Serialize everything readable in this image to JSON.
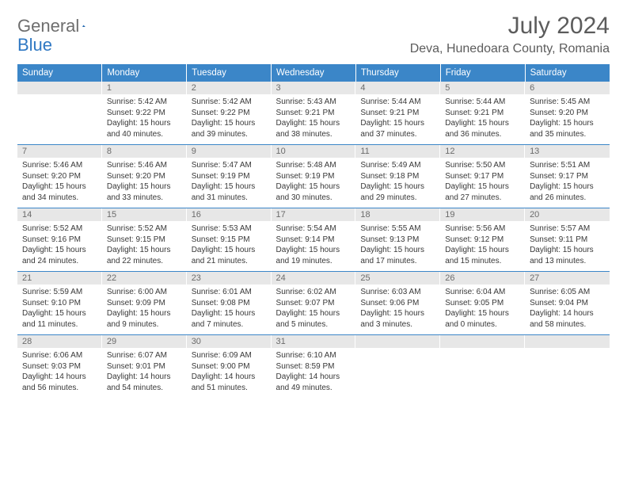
{
  "brand": {
    "word1": "General",
    "word2": "Blue"
  },
  "header": {
    "month_title": "July 2024",
    "location": "Deva, Hunedoara County, Romania"
  },
  "style": {
    "header_bg": "#3b86c8",
    "header_text": "#ffffff",
    "daynum_bg": "#e7e7e7",
    "daynum_text": "#6b6b6b",
    "body_text": "#383838",
    "rule_color": "#3b86c8",
    "page_bg": "#ffffff",
    "title_color": "#5c5c5c",
    "brand_gray": "#6e6e6e",
    "brand_blue": "#2f78c3",
    "columns": 7
  },
  "weekdays": [
    "Sunday",
    "Monday",
    "Tuesday",
    "Wednesday",
    "Thursday",
    "Friday",
    "Saturday"
  ],
  "weeks": [
    [
      {
        "num": "",
        "sunrise": "",
        "sunset": "",
        "daylight": ""
      },
      {
        "num": "1",
        "sunrise": "Sunrise: 5:42 AM",
        "sunset": "Sunset: 9:22 PM",
        "daylight": "Daylight: 15 hours and 40 minutes."
      },
      {
        "num": "2",
        "sunrise": "Sunrise: 5:42 AM",
        "sunset": "Sunset: 9:22 PM",
        "daylight": "Daylight: 15 hours and 39 minutes."
      },
      {
        "num": "3",
        "sunrise": "Sunrise: 5:43 AM",
        "sunset": "Sunset: 9:21 PM",
        "daylight": "Daylight: 15 hours and 38 minutes."
      },
      {
        "num": "4",
        "sunrise": "Sunrise: 5:44 AM",
        "sunset": "Sunset: 9:21 PM",
        "daylight": "Daylight: 15 hours and 37 minutes."
      },
      {
        "num": "5",
        "sunrise": "Sunrise: 5:44 AM",
        "sunset": "Sunset: 9:21 PM",
        "daylight": "Daylight: 15 hours and 36 minutes."
      },
      {
        "num": "6",
        "sunrise": "Sunrise: 5:45 AM",
        "sunset": "Sunset: 9:20 PM",
        "daylight": "Daylight: 15 hours and 35 minutes."
      }
    ],
    [
      {
        "num": "7",
        "sunrise": "Sunrise: 5:46 AM",
        "sunset": "Sunset: 9:20 PM",
        "daylight": "Daylight: 15 hours and 34 minutes."
      },
      {
        "num": "8",
        "sunrise": "Sunrise: 5:46 AM",
        "sunset": "Sunset: 9:20 PM",
        "daylight": "Daylight: 15 hours and 33 minutes."
      },
      {
        "num": "9",
        "sunrise": "Sunrise: 5:47 AM",
        "sunset": "Sunset: 9:19 PM",
        "daylight": "Daylight: 15 hours and 31 minutes."
      },
      {
        "num": "10",
        "sunrise": "Sunrise: 5:48 AM",
        "sunset": "Sunset: 9:19 PM",
        "daylight": "Daylight: 15 hours and 30 minutes."
      },
      {
        "num": "11",
        "sunrise": "Sunrise: 5:49 AM",
        "sunset": "Sunset: 9:18 PM",
        "daylight": "Daylight: 15 hours and 29 minutes."
      },
      {
        "num": "12",
        "sunrise": "Sunrise: 5:50 AM",
        "sunset": "Sunset: 9:17 PM",
        "daylight": "Daylight: 15 hours and 27 minutes."
      },
      {
        "num": "13",
        "sunrise": "Sunrise: 5:51 AM",
        "sunset": "Sunset: 9:17 PM",
        "daylight": "Daylight: 15 hours and 26 minutes."
      }
    ],
    [
      {
        "num": "14",
        "sunrise": "Sunrise: 5:52 AM",
        "sunset": "Sunset: 9:16 PM",
        "daylight": "Daylight: 15 hours and 24 minutes."
      },
      {
        "num": "15",
        "sunrise": "Sunrise: 5:52 AM",
        "sunset": "Sunset: 9:15 PM",
        "daylight": "Daylight: 15 hours and 22 minutes."
      },
      {
        "num": "16",
        "sunrise": "Sunrise: 5:53 AM",
        "sunset": "Sunset: 9:15 PM",
        "daylight": "Daylight: 15 hours and 21 minutes."
      },
      {
        "num": "17",
        "sunrise": "Sunrise: 5:54 AM",
        "sunset": "Sunset: 9:14 PM",
        "daylight": "Daylight: 15 hours and 19 minutes."
      },
      {
        "num": "18",
        "sunrise": "Sunrise: 5:55 AM",
        "sunset": "Sunset: 9:13 PM",
        "daylight": "Daylight: 15 hours and 17 minutes."
      },
      {
        "num": "19",
        "sunrise": "Sunrise: 5:56 AM",
        "sunset": "Sunset: 9:12 PM",
        "daylight": "Daylight: 15 hours and 15 minutes."
      },
      {
        "num": "20",
        "sunrise": "Sunrise: 5:57 AM",
        "sunset": "Sunset: 9:11 PM",
        "daylight": "Daylight: 15 hours and 13 minutes."
      }
    ],
    [
      {
        "num": "21",
        "sunrise": "Sunrise: 5:59 AM",
        "sunset": "Sunset: 9:10 PM",
        "daylight": "Daylight: 15 hours and 11 minutes."
      },
      {
        "num": "22",
        "sunrise": "Sunrise: 6:00 AM",
        "sunset": "Sunset: 9:09 PM",
        "daylight": "Daylight: 15 hours and 9 minutes."
      },
      {
        "num": "23",
        "sunrise": "Sunrise: 6:01 AM",
        "sunset": "Sunset: 9:08 PM",
        "daylight": "Daylight: 15 hours and 7 minutes."
      },
      {
        "num": "24",
        "sunrise": "Sunrise: 6:02 AM",
        "sunset": "Sunset: 9:07 PM",
        "daylight": "Daylight: 15 hours and 5 minutes."
      },
      {
        "num": "25",
        "sunrise": "Sunrise: 6:03 AM",
        "sunset": "Sunset: 9:06 PM",
        "daylight": "Daylight: 15 hours and 3 minutes."
      },
      {
        "num": "26",
        "sunrise": "Sunrise: 6:04 AM",
        "sunset": "Sunset: 9:05 PM",
        "daylight": "Daylight: 15 hours and 0 minutes."
      },
      {
        "num": "27",
        "sunrise": "Sunrise: 6:05 AM",
        "sunset": "Sunset: 9:04 PM",
        "daylight": "Daylight: 14 hours and 58 minutes."
      }
    ],
    [
      {
        "num": "28",
        "sunrise": "Sunrise: 6:06 AM",
        "sunset": "Sunset: 9:03 PM",
        "daylight": "Daylight: 14 hours and 56 minutes."
      },
      {
        "num": "29",
        "sunrise": "Sunrise: 6:07 AM",
        "sunset": "Sunset: 9:01 PM",
        "daylight": "Daylight: 14 hours and 54 minutes."
      },
      {
        "num": "30",
        "sunrise": "Sunrise: 6:09 AM",
        "sunset": "Sunset: 9:00 PM",
        "daylight": "Daylight: 14 hours and 51 minutes."
      },
      {
        "num": "31",
        "sunrise": "Sunrise: 6:10 AM",
        "sunset": "Sunset: 8:59 PM",
        "daylight": "Daylight: 14 hours and 49 minutes."
      },
      {
        "num": "",
        "sunrise": "",
        "sunset": "",
        "daylight": ""
      },
      {
        "num": "",
        "sunrise": "",
        "sunset": "",
        "daylight": ""
      },
      {
        "num": "",
        "sunrise": "",
        "sunset": "",
        "daylight": ""
      }
    ]
  ]
}
